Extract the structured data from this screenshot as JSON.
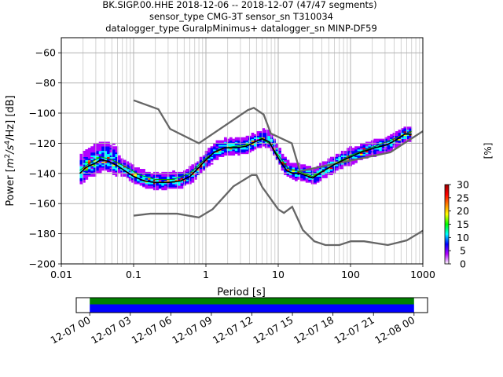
{
  "figure": {
    "title_lines": [
      "BK.SIGP.00.HHE   2018-12-06 -- 2018-12-07  (47/47 segments)",
      "sensor_type CMG-3T sensor_sn T310034",
      "datalogger_type GuralpMinimus+ datalogger_sn MINP-DF59"
    ]
  },
  "chart_data": [
    {
      "type": "heatmap",
      "subtype": "probabilistic power spectral density",
      "xlabel": "Period [s]",
      "ylabel": "Power [m²/s⁴/Hz] [dB]",
      "ylabel_parts": {
        "pre": "Power [",
        "m": "m",
        "sup1": "2",
        "slash_s": "/s",
        "sup2": "4",
        "tail": "/Hz] [dB]"
      },
      "x_scale": "log",
      "xlim": [
        0.01,
        1000
      ],
      "ylim": [
        -200,
        -50
      ],
      "grid": true,
      "x_ticks": [
        {
          "value": 0.01,
          "label": "0.01"
        },
        {
          "value": 0.1,
          "label": "0.1"
        },
        {
          "value": 1,
          "label": "1"
        },
        {
          "value": 10,
          "label": "10"
        },
        {
          "value": 100,
          "label": "100"
        },
        {
          "value": 1000,
          "label": "1000"
        }
      ],
      "y_ticks": [
        {
          "value": -60,
          "label": "−60"
        },
        {
          "value": -80,
          "label": "−80"
        },
        {
          "value": -100,
          "label": "−100"
        },
        {
          "value": -120,
          "label": "−120"
        },
        {
          "value": -140,
          "label": "−140"
        },
        {
          "value": -160,
          "label": "−160"
        },
        {
          "value": -180,
          "label": "−180"
        },
        {
          "value": -200,
          "label": "−200"
        }
      ],
      "noise_models": [
        {
          "id": "NHNM",
          "color": "#666666",
          "points": [
            [
              0.1,
              -91.5
            ],
            [
              0.22,
              -97.4
            ],
            [
              0.32,
              -110.5
            ],
            [
              0.8,
              -120
            ],
            [
              3.8,
              -98
            ],
            [
              4.6,
              -96.5
            ],
            [
              6.3,
              -101
            ],
            [
              7.9,
              -113.5
            ],
            [
              15.4,
              -120
            ],
            [
              20,
              -138.5
            ],
            [
              354.8,
              -126
            ],
            [
              1000,
              -112
            ]
          ]
        },
        {
          "id": "NLNM",
          "color": "#666666",
          "points": [
            [
              0.1,
              -168
            ],
            [
              0.17,
              -166.7
            ],
            [
              0.4,
              -166.7
            ],
            [
              0.8,
              -169.2
            ],
            [
              1.24,
              -163.7
            ],
            [
              2.4,
              -148.6
            ],
            [
              4.3,
              -141.1
            ],
            [
              5,
              -141.1
            ],
            [
              6,
              -149
            ],
            [
              10,
              -163.8
            ],
            [
              12,
              -166.2
            ],
            [
              15.6,
              -162.1
            ],
            [
              21.9,
              -177.5
            ],
            [
              31.6,
              -185
            ],
            [
              45,
              -187.5
            ],
            [
              70,
              -187.5
            ],
            [
              101,
              -185
            ],
            [
              154,
              -185
            ],
            [
              328,
              -187.5
            ],
            [
              600,
              -184.4
            ],
            [
              1000,
              -178
            ]
          ]
        }
      ],
      "mode_curve": {
        "color": "#000000",
        "points": [
          [
            0.018,
            -140
          ],
          [
            0.022,
            -136
          ],
          [
            0.03,
            -133
          ],
          [
            0.035,
            -131
          ],
          [
            0.045,
            -132
          ],
          [
            0.06,
            -135
          ],
          [
            0.08,
            -139
          ],
          [
            0.1,
            -142
          ],
          [
            0.14,
            -145
          ],
          [
            0.2,
            -146
          ],
          [
            0.3,
            -146
          ],
          [
            0.45,
            -145
          ],
          [
            0.6,
            -142
          ],
          [
            0.8,
            -136
          ],
          [
            1,
            -131
          ],
          [
            1.3,
            -126
          ],
          [
            1.8,
            -123
          ],
          [
            2.6,
            -123
          ],
          [
            3.6,
            -122
          ],
          [
            4.8,
            -119
          ],
          [
            6,
            -117
          ],
          [
            7.5,
            -119
          ],
          [
            9,
            -126
          ],
          [
            11,
            -133
          ],
          [
            13,
            -138
          ],
          [
            16,
            -140
          ],
          [
            20,
            -140
          ],
          [
            26,
            -142
          ],
          [
            30,
            -143
          ],
          [
            40,
            -139
          ],
          [
            60,
            -134
          ],
          [
            90,
            -130
          ],
          [
            140,
            -126
          ],
          [
            220,
            -123
          ],
          [
            320,
            -121
          ],
          [
            420,
            -118
          ],
          [
            560,
            -114
          ],
          [
            700,
            -114
          ]
        ]
      },
      "mean_curve": {
        "color": "#009900",
        "points": [
          [
            0.018,
            -138
          ],
          [
            0.025,
            -133
          ],
          [
            0.035,
            -129
          ],
          [
            0.05,
            -131
          ],
          [
            0.08,
            -136
          ],
          [
            0.12,
            -141
          ],
          [
            0.2,
            -144
          ],
          [
            0.35,
            -144
          ],
          [
            0.6,
            -140
          ],
          [
            1,
            -130
          ],
          [
            1.5,
            -124
          ],
          [
            2.5,
            -122
          ],
          [
            4,
            -121
          ],
          [
            5.8,
            -117
          ],
          [
            7.5,
            -120
          ],
          [
            10,
            -128
          ],
          [
            14,
            -137
          ],
          [
            20,
            -139
          ],
          [
            30,
            -142
          ],
          [
            50,
            -136
          ],
          [
            100,
            -128
          ],
          [
            250,
            -121
          ],
          [
            450,
            -116
          ],
          [
            700,
            -112
          ]
        ]
      },
      "colorbar": {
        "label": "[%]",
        "range": [
          0,
          30
        ],
        "ticks": [
          {
            "value": 0,
            "label": "0"
          },
          {
            "value": 5,
            "label": "5"
          },
          {
            "value": 10,
            "label": "10"
          },
          {
            "value": 15,
            "label": "15"
          },
          {
            "value": 20,
            "label": "20"
          },
          {
            "value": 25,
            "label": "25"
          },
          {
            "value": 30,
            "label": "30"
          }
        ],
        "stops": [
          "#ffffff",
          "#b300ff",
          "#0000ff",
          "#00ffff",
          "#00ff00",
          "#ffff00",
          "#ff8000",
          "#ff0000",
          "#990000"
        ]
      }
    },
    {
      "type": "bar",
      "subtype": "data coverage timeline",
      "time_range": [
        "2018-12-06 23:00",
        "2018-12-08 01:00"
      ],
      "x_ticks": [
        {
          "value": "2018-12-07 00:00",
          "label": "12-07 00"
        },
        {
          "value": "2018-12-07 03:00",
          "label": "12-07 03"
        },
        {
          "value": "2018-12-07 06:00",
          "label": "12-07 06"
        },
        {
          "value": "2018-12-07 09:00",
          "label": "12-07 09"
        },
        {
          "value": "2018-12-07 12:00",
          "label": "12-07 12"
        },
        {
          "value": "2018-12-07 15:00",
          "label": "12-07 15"
        },
        {
          "value": "2018-12-07 18:00",
          "label": "12-07 18"
        },
        {
          "value": "2018-12-07 21:00",
          "label": "12-07 21"
        },
        {
          "value": "2018-12-08 00:00",
          "label": "12-08 00"
        }
      ],
      "bands": [
        {
          "role": "data available",
          "color": "#008000",
          "start": "2018-12-07 00:00",
          "end": "2018-12-08 00:00"
        },
        {
          "role": "segments used",
          "color": "#0000ff",
          "start": "2018-12-07 00:00",
          "end": "2018-12-08 00:00"
        }
      ]
    }
  ]
}
